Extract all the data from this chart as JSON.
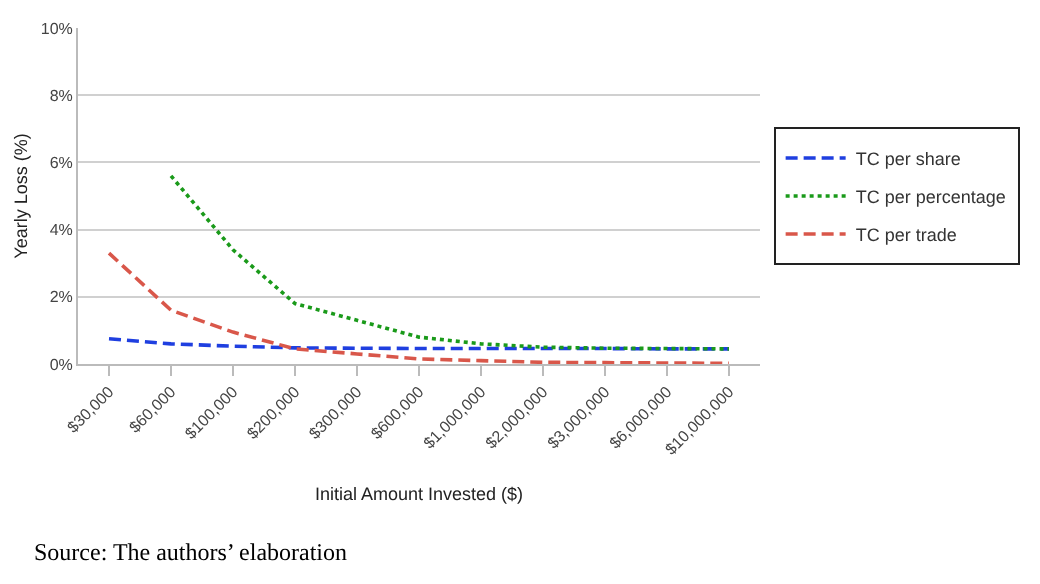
{
  "chart_data": {
    "type": "line",
    "xlabel": "Initial Amount Invested ($)",
    "ylabel": "Yearly Loss (%)",
    "categories": [
      "$30,000",
      "$60,000",
      "$100,000",
      "$200,000",
      "$300,000",
      "$600,000",
      "$1,000,000",
      "$2,000,000",
      "$3,000,000",
      "$6,000,000",
      "$10,000,000"
    ],
    "series": [
      {
        "name": "TC per share",
        "color": "#1f3fe0",
        "line_style": "dashed",
        "values": [
          0.75,
          0.6,
          0.53,
          0.48,
          0.47,
          0.46,
          0.46,
          0.46,
          0.46,
          0.45,
          0.45
        ]
      },
      {
        "name": "TC per percentage",
        "color": "#1a9a1a",
        "line_style": "dotted",
        "values": [
          null,
          5.6,
          3.4,
          1.8,
          1.3,
          0.8,
          0.6,
          0.5,
          0.47,
          0.46,
          0.45
        ]
      },
      {
        "name": "TC per trade",
        "color": "#d9574a",
        "line_style": "dashed",
        "values": [
          3.3,
          1.6,
          0.95,
          0.45,
          0.3,
          0.15,
          0.1,
          0.05,
          0.04,
          0.03,
          0.02
        ]
      }
    ],
    "ylim": [
      0,
      10
    ],
    "yticks": [
      {
        "value": 0,
        "label": "0%"
      },
      {
        "value": 2,
        "label": "2%"
      },
      {
        "value": 4,
        "label": "4%"
      },
      {
        "value": 6,
        "label": "6%"
      },
      {
        "value": 8,
        "label": "8%"
      },
      {
        "value": 10,
        "label": "10%"
      }
    ],
    "grid": "y",
    "legend": "right",
    "marker": "none",
    "annotations": [
      "Source: The authors’ elaboration"
    ]
  }
}
